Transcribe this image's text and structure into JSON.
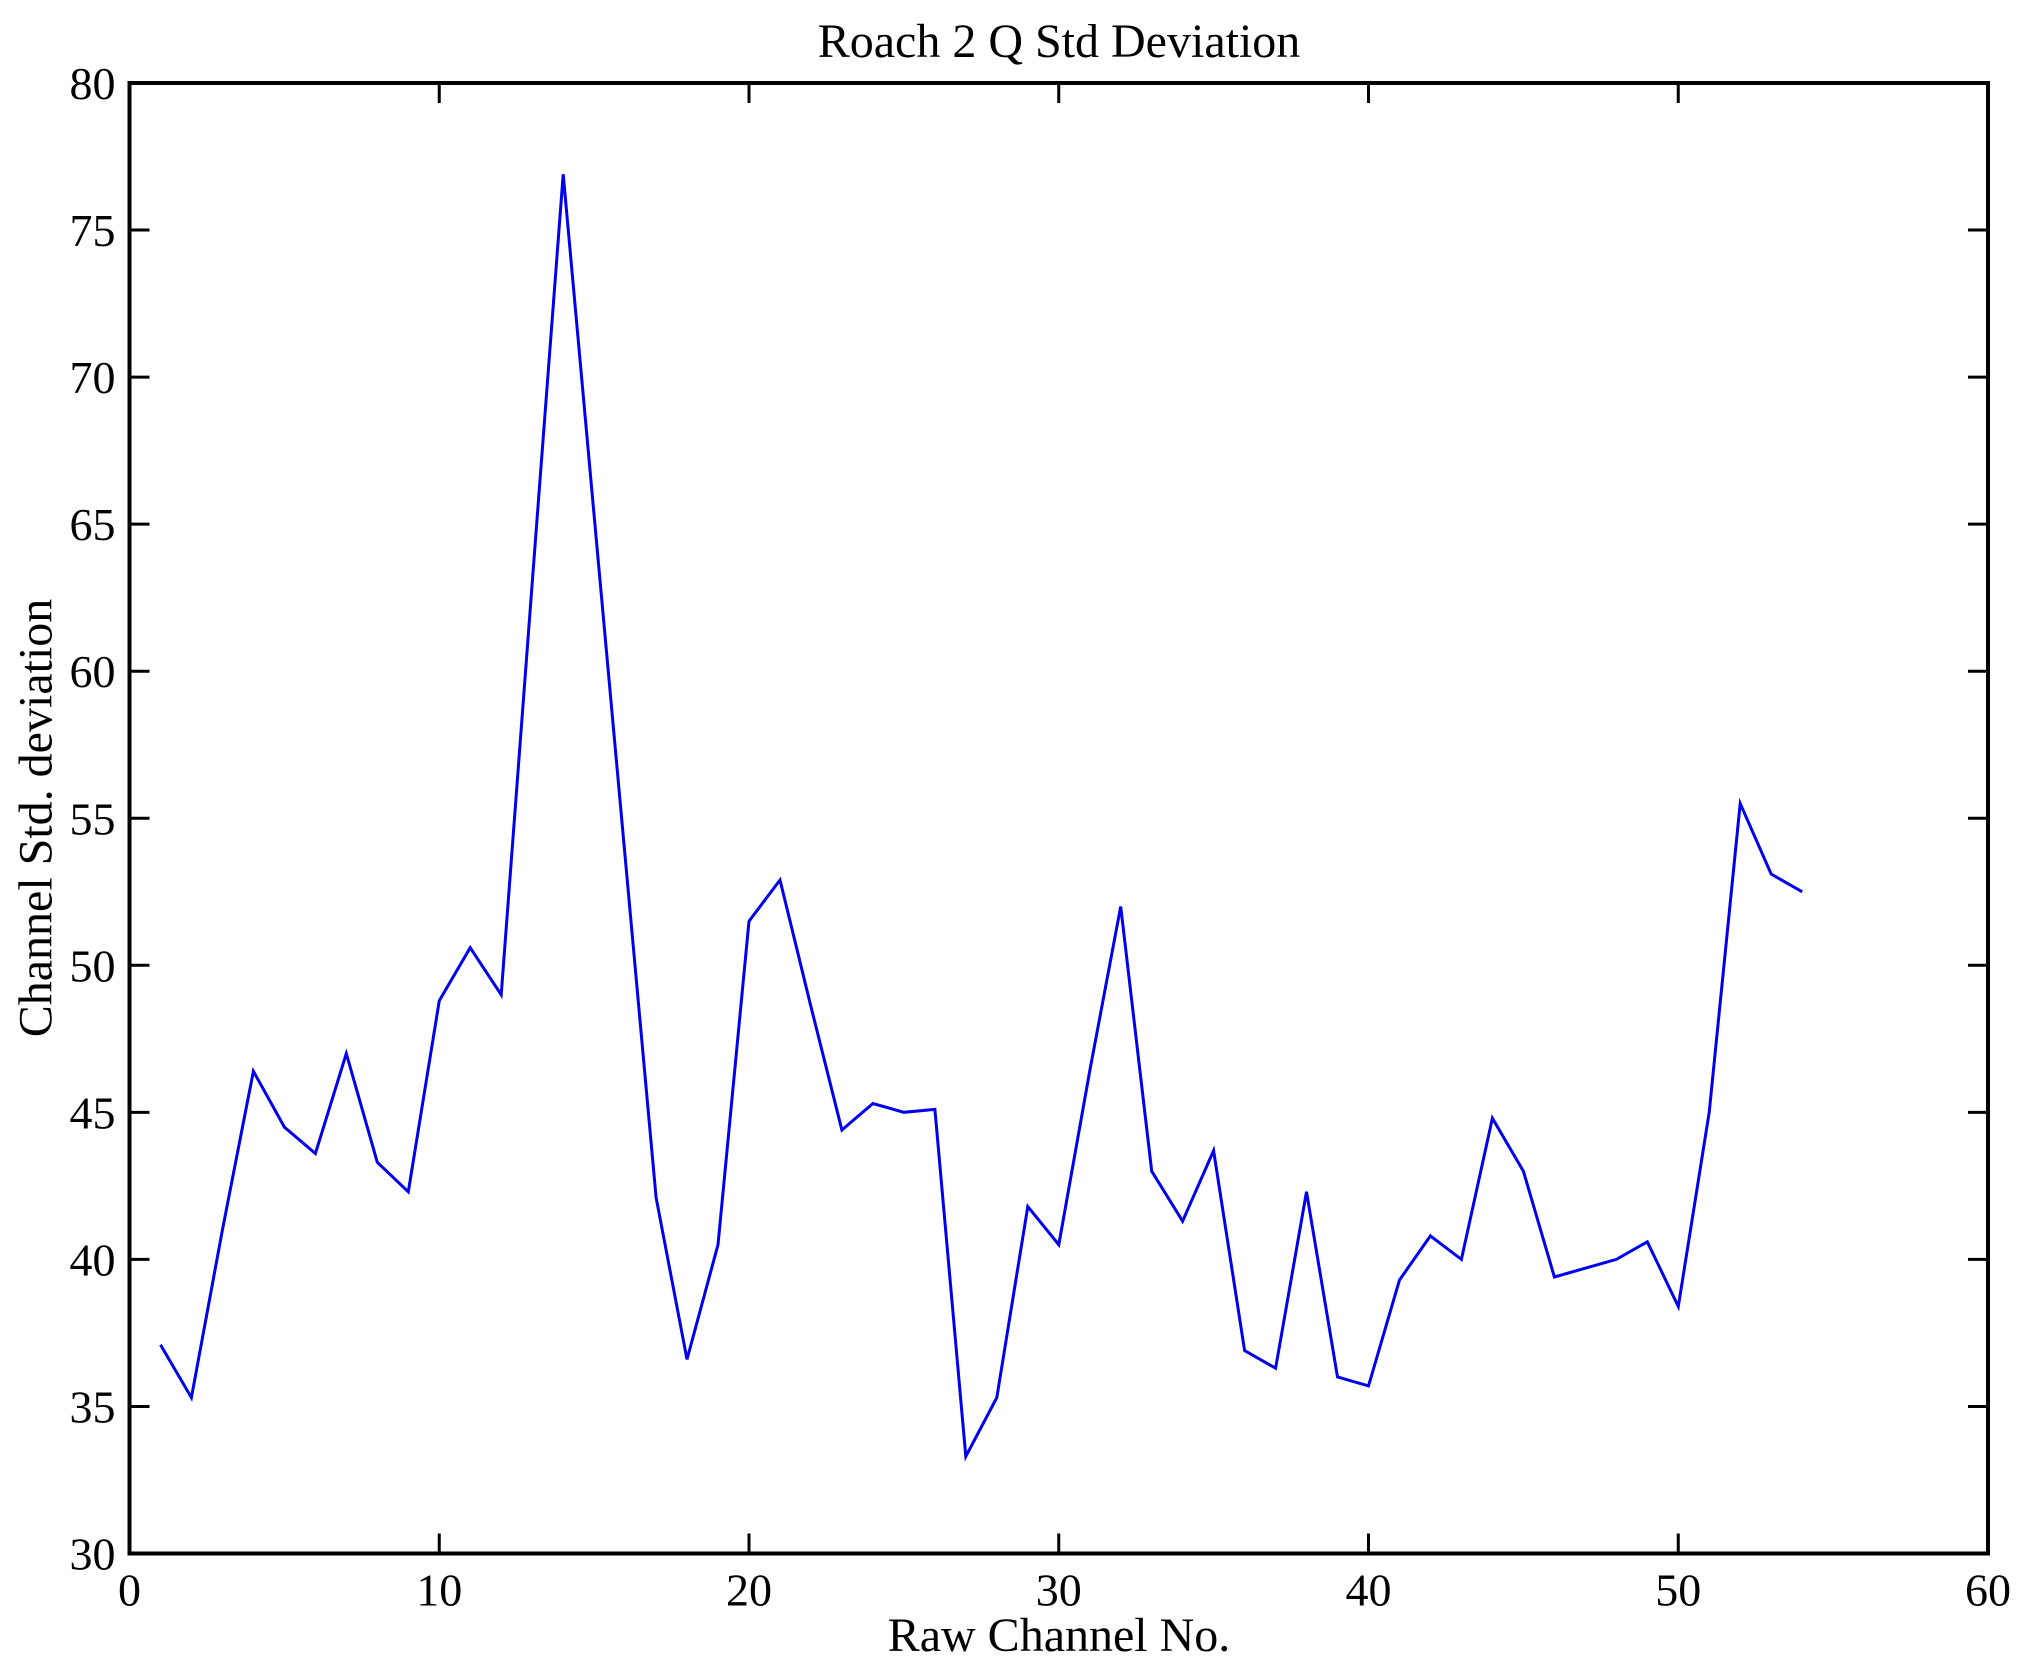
{
  "chart_data": {
    "type": "line",
    "title": "Roach 2 Q Std Deviation",
    "xlabel": "Raw Channel No.",
    "ylabel": "Channel Std. deviation",
    "xlim": [
      0,
      60
    ],
    "ylim": [
      30,
      80
    ],
    "xticks": [
      0,
      10,
      20,
      30,
      40,
      50,
      60
    ],
    "yticks": [
      30,
      35,
      40,
      45,
      50,
      55,
      60,
      65,
      70,
      75,
      80
    ],
    "grid": false,
    "legend": "none",
    "line_color": "#0000ee",
    "axis_color": "#000000",
    "background_color": "#ffffff",
    "x": [
      1,
      2,
      3,
      4,
      5,
      6,
      7,
      8,
      9,
      10,
      11,
      12,
      13,
      14,
      15,
      16,
      17,
      18,
      19,
      20,
      21,
      22,
      23,
      24,
      25,
      26,
      27,
      28,
      29,
      30,
      31,
      32,
      33,
      34,
      35,
      36,
      37,
      38,
      39,
      40,
      41,
      42,
      43,
      44,
      45,
      46,
      47,
      48,
      49,
      50,
      51,
      52,
      53,
      54
    ],
    "values": [
      37.1,
      35.3,
      41.0,
      46.4,
      44.5,
      43.6,
      47.0,
      43.3,
      42.3,
      48.8,
      50.6,
      49.0,
      63.0,
      76.9,
      65.3,
      53.7,
      42.1,
      36.6,
      40.5,
      51.5,
      52.9,
      48.6,
      44.4,
      45.3,
      45.0,
      45.1,
      33.3,
      35.3,
      41.8,
      40.5,
      46.4,
      52.0,
      43.0,
      41.3,
      43.7,
      36.9,
      36.3,
      42.3,
      36.0,
      35.7,
      39.3,
      40.8,
      40.0,
      44.8,
      43.0,
      39.4,
      39.7,
      40.0,
      40.6,
      38.4,
      45.0,
      55.5,
      53.1,
      52.5
    ]
  }
}
